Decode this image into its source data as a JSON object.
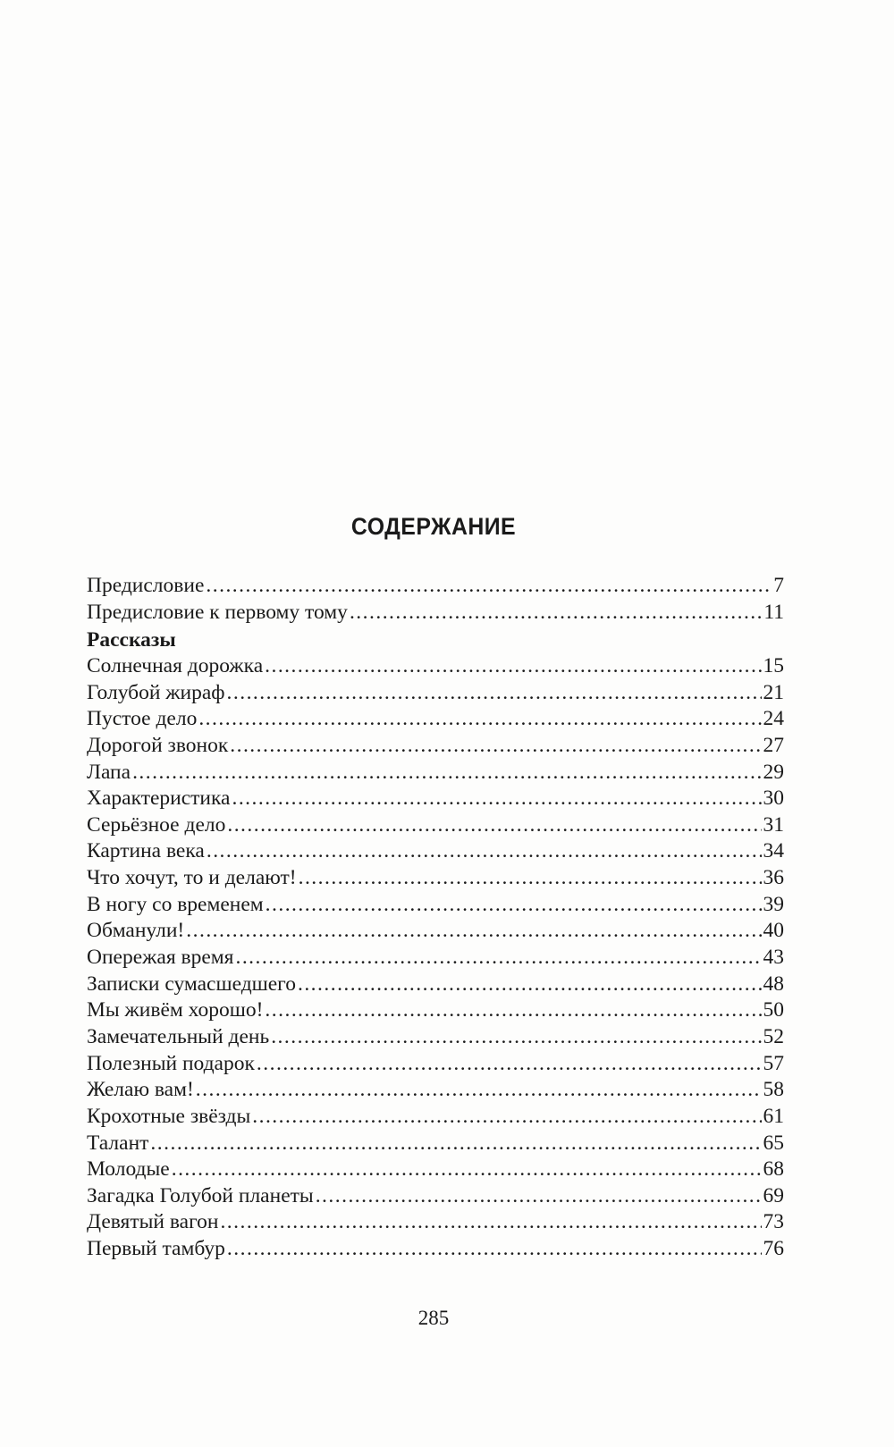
{
  "title": "СОДЕРЖАНИЕ",
  "front_matter": [
    {
      "title": "Предисловие",
      "page": "7"
    },
    {
      "title": "Предисловие к первому тому",
      "page": "11"
    }
  ],
  "section": {
    "heading": "Рассказы",
    "entries": [
      {
        "title": "Солнечная дорожка",
        "page": "15"
      },
      {
        "title": "Голубой жираф",
        "page": "21"
      },
      {
        "title": "Пустое дело",
        "page": "24"
      },
      {
        "title": "Дорогой звонок",
        "page": "27"
      },
      {
        "title": "Лапа",
        "page": "29"
      },
      {
        "title": "Характеристика",
        "page": "30"
      },
      {
        "title": "Серьёзное дело",
        "page": "31"
      },
      {
        "title": "Картина века",
        "page": "34"
      },
      {
        "title": "Что хочут, то и делают!",
        "page": "36"
      },
      {
        "title": "В ногу со временем",
        "page": "39"
      },
      {
        "title": "Обманули!",
        "page": "40"
      },
      {
        "title": "Опережая время",
        "page": "43"
      },
      {
        "title": "Записки сумасшедшего",
        "page": "48"
      },
      {
        "title": "Мы живём хорошо!",
        "page": "50"
      },
      {
        "title": "Замечательный день",
        "page": "52"
      },
      {
        "title": "Полезный подарок",
        "page": "57"
      },
      {
        "title": "Желаю вам!",
        "page": "58"
      },
      {
        "title": "Крохотные звёзды",
        "page": "61"
      },
      {
        "title": "Талант",
        "page": "65"
      },
      {
        "title": "Молодые",
        "page": "68"
      },
      {
        "title": "Загадка Голубой планеты",
        "page": "69"
      },
      {
        "title": "Девятый вагон",
        "page": "73"
      },
      {
        "title": "Первый тамбур",
        "page": "76"
      }
    ]
  },
  "page_number": "285"
}
